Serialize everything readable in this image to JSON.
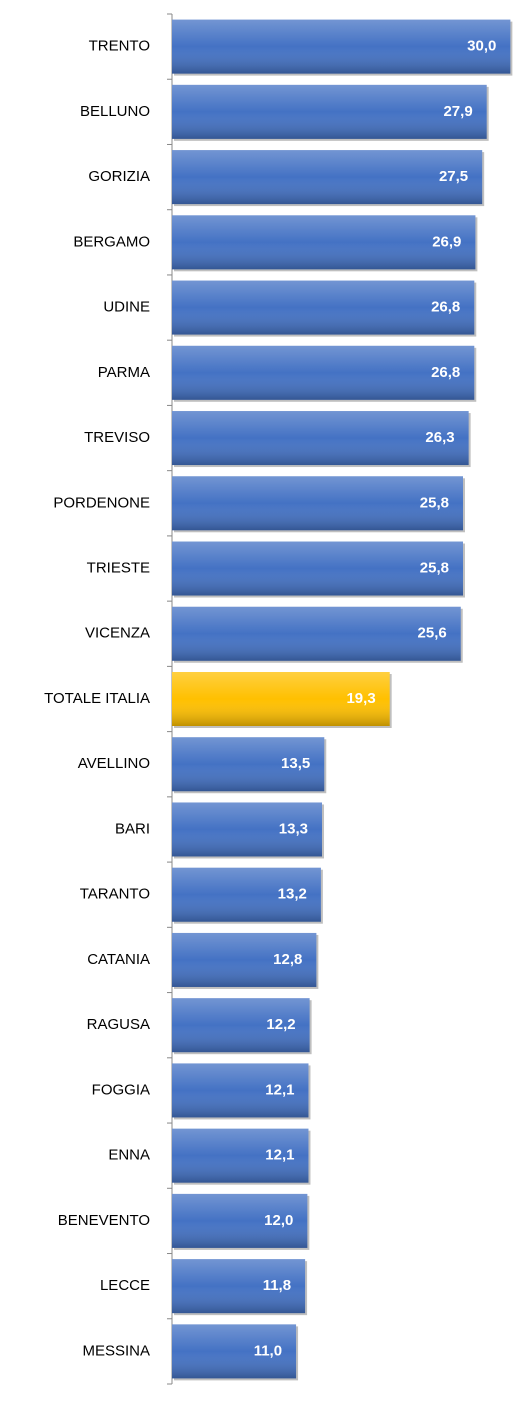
{
  "chart_data": {
    "type": "barh",
    "categories": [
      "TRENTO",
      "BELLUNO",
      "GORIZIA",
      "BERGAMO",
      "UDINE",
      "PARMA",
      "TREVISO",
      "PORDENONE",
      "TRIESTE",
      "VICENZA",
      "TOTALE ITALIA",
      "AVELLINO",
      "BARI",
      "TARANTO",
      "CATANIA",
      "RAGUSA",
      "FOGGIA",
      "ENNA",
      "BENEVENTO",
      "LECCE",
      "MESSINA"
    ],
    "values": [
      30.0,
      27.9,
      27.5,
      26.9,
      26.8,
      26.8,
      26.3,
      25.8,
      25.8,
      25.6,
      19.3,
      13.5,
      13.3,
      13.2,
      12.8,
      12.2,
      12.1,
      12.1,
      12.0,
      11.8,
      11.0
    ],
    "value_labels": [
      "30,0",
      "27,9",
      "27,5",
      "26,9",
      "26,8",
      "26,8",
      "26,3",
      "25,8",
      "25,8",
      "25,6",
      "19,3",
      "13,5",
      "13,3",
      "13,2",
      "12,8",
      "12,2",
      "12,1",
      "12,1",
      "12,0",
      "11,8",
      "11,0"
    ],
    "colors": [
      "#4472c4",
      "#4472c4",
      "#4472c4",
      "#4472c4",
      "#4472c4",
      "#4472c4",
      "#4472c4",
      "#4472c4",
      "#4472c4",
      "#4472c4",
      "#ffc000",
      "#4472c4",
      "#4472c4",
      "#4472c4",
      "#4472c4",
      "#4472c4",
      "#4472c4",
      "#4472c4",
      "#4472c4",
      "#4472c4",
      "#4472c4"
    ],
    "xlim": [
      0,
      30.5
    ]
  }
}
